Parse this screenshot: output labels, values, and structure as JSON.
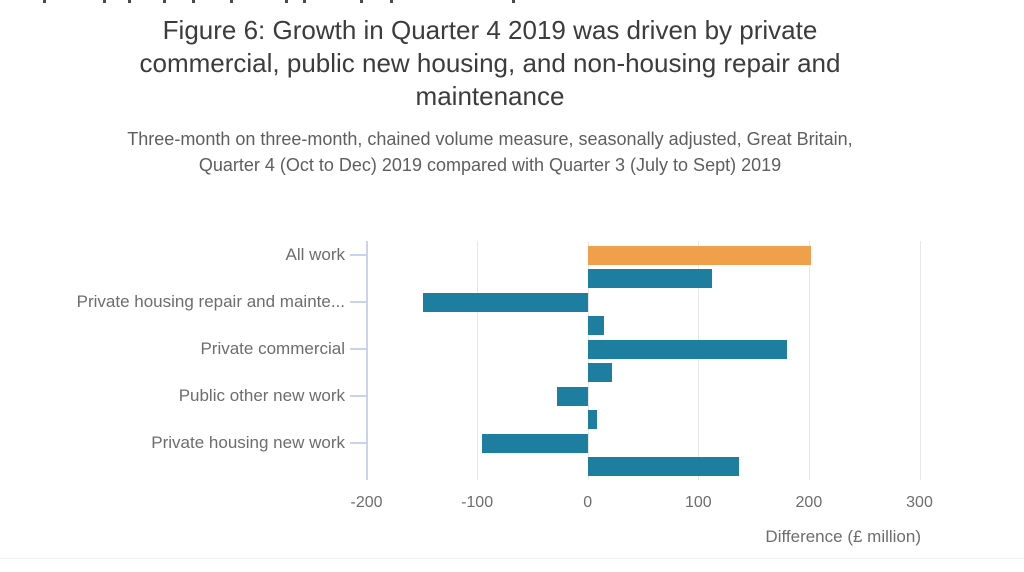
{
  "header": {
    "title_lines": [
      "Figure 6: Growth in Quarter 4 2019 was driven by private",
      "commercial, public new housing, and non-housing repair and",
      "maintenance"
    ],
    "subtitle_lines": [
      "Three-month on three-month, chained volume measure, seasonally adjusted, Great Britain,",
      "Quarter 4 (Oct to Dec) 2019 compared with Quarter 3 (July to Sept) 2019"
    ]
  },
  "colors": {
    "bar_blue": "#1e7ea0",
    "bar_orange": "#f0a04b",
    "gridline": "#e7e7e7",
    "axis_line": "#c9d3ea",
    "title_text": "#3c3b3d",
    "muted_text": "#6d6d6d"
  },
  "chart_data": {
    "type": "bar",
    "orientation": "horizontal",
    "title": "Figure 6: Growth in Quarter 4 2019 was driven by private commercial, public new housing, and non-housing repair and maintenance",
    "subtitle": "Three-month on three-month, chained volume measure, seasonally adjusted, Great Britain, Quarter 4 (Oct to Dec) 2019 compared with Quarter 3 (July to Sept) 2019",
    "xlabel": "Difference (£ million)",
    "xlim": [
      -200,
      300
    ],
    "x_ticks": [
      -200,
      -100,
      0,
      100,
      200,
      300
    ],
    "grid": true,
    "legend_position": "none",
    "categories": [
      "All work",
      "",
      "Private housing repair and mainte...",
      "",
      "Private commercial",
      "",
      "Public other new work",
      "",
      "Private housing new work",
      ""
    ],
    "values": [
      202,
      112,
      -149,
      15,
      180,
      22,
      -28,
      8,
      -96,
      137
    ],
    "bar_colors": [
      "#f0a04b",
      "#1e7ea0",
      "#1e7ea0",
      "#1e7ea0",
      "#1e7ea0",
      "#1e7ea0",
      "#1e7ea0",
      "#1e7ea0",
      "#1e7ea0",
      "#1e7ea0"
    ]
  }
}
